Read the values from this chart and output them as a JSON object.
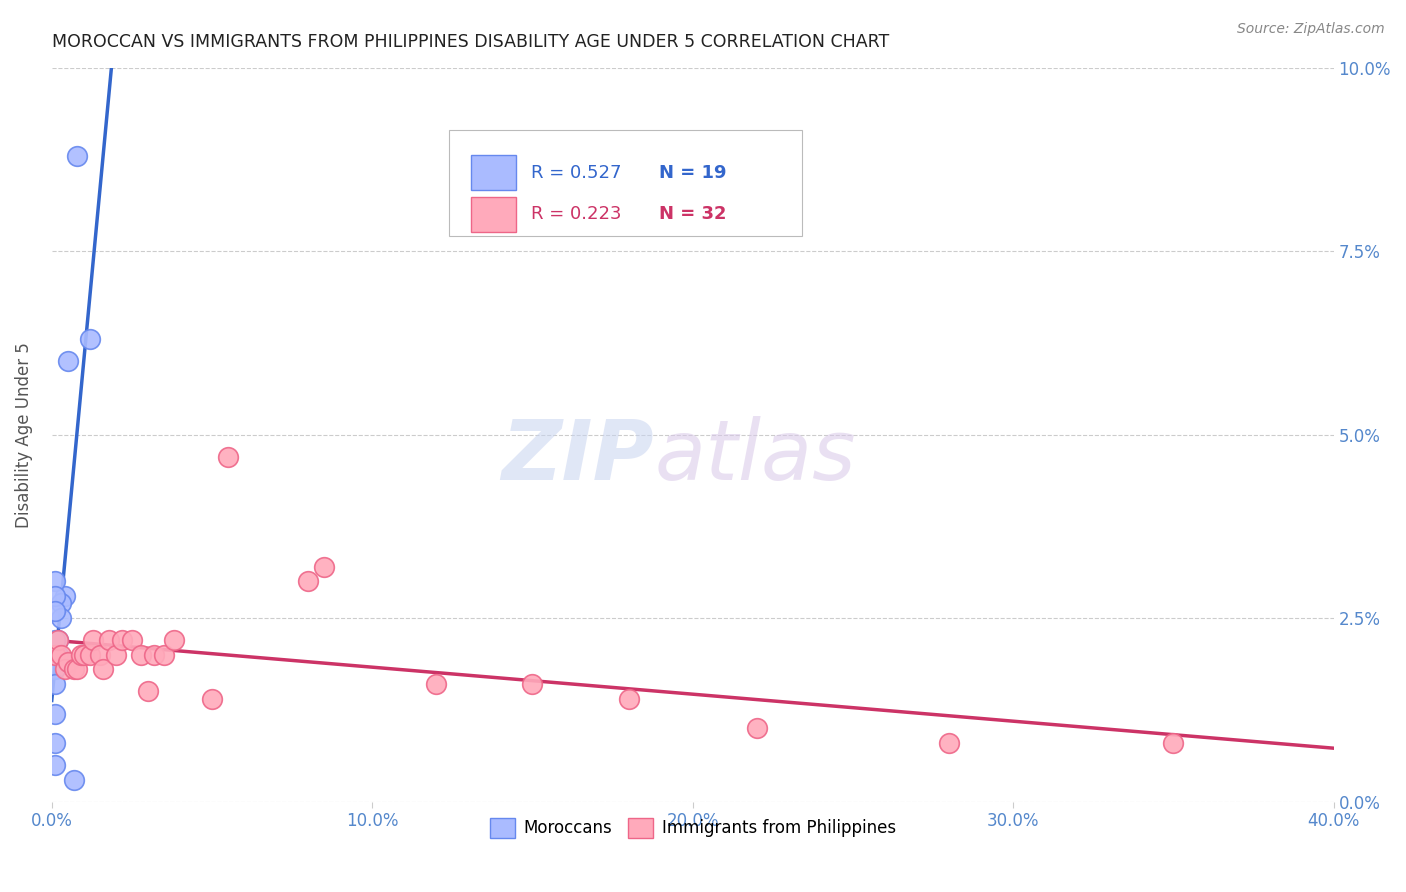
{
  "title": "MOROCCAN VS IMMIGRANTS FROM PHILIPPINES DISABILITY AGE UNDER 5 CORRELATION CHART",
  "source": "Source: ZipAtlas.com",
  "ylabel": "Disability Age Under 5",
  "xlim": [
    0.0,
    0.4
  ],
  "ylim": [
    0.0,
    0.1
  ],
  "xticks": [
    0.0,
    0.1,
    0.2,
    0.3,
    0.4
  ],
  "xticklabels": [
    "0.0%",
    "10.0%",
    "20.0%",
    "30.0%",
    "40.0%"
  ],
  "yticks": [
    0.0,
    0.025,
    0.05,
    0.075,
    0.1
  ],
  "yticklabels": [
    "0.0%",
    "2.5%",
    "5.0%",
    "7.5%",
    "10.0%"
  ],
  "moroccan_x": [
    0.008,
    0.005,
    0.004,
    0.003,
    0.003,
    0.002,
    0.002,
    0.001,
    0.001,
    0.001,
    0.001,
    0.001,
    0.001,
    0.001,
    0.001,
    0.001,
    0.001,
    0.012,
    0.007
  ],
  "moroccan_y": [
    0.088,
    0.06,
    0.028,
    0.027,
    0.025,
    0.022,
    0.02,
    0.03,
    0.028,
    0.026,
    0.022,
    0.02,
    0.018,
    0.016,
    0.012,
    0.008,
    0.005,
    0.063,
    0.003
  ],
  "philippines_x": [
    0.001,
    0.002,
    0.003,
    0.004,
    0.005,
    0.007,
    0.008,
    0.009,
    0.01,
    0.012,
    0.013,
    0.015,
    0.016,
    0.018,
    0.02,
    0.022,
    0.025,
    0.028,
    0.03,
    0.032,
    0.035,
    0.038,
    0.05,
    0.055,
    0.08,
    0.085,
    0.12,
    0.15,
    0.18,
    0.22,
    0.28,
    0.35
  ],
  "philippines_y": [
    0.02,
    0.022,
    0.02,
    0.018,
    0.019,
    0.018,
    0.018,
    0.02,
    0.02,
    0.02,
    0.022,
    0.02,
    0.018,
    0.022,
    0.02,
    0.022,
    0.022,
    0.02,
    0.015,
    0.02,
    0.02,
    0.022,
    0.014,
    0.047,
    0.03,
    0.032,
    0.016,
    0.016,
    0.014,
    0.01,
    0.008,
    0.008
  ],
  "moroccan_color": "#aabbff",
  "moroccan_edge": "#6688ee",
  "philippines_color": "#ffaabb",
  "philippines_edge": "#ee6688",
  "moroccan_line_color": "#3366cc",
  "philippines_line_color": "#cc3366",
  "R_moroccan": 0.527,
  "N_moroccan": 19,
  "R_philippines": 0.223,
  "N_philippines": 32,
  "watermark_zip": "ZIP",
  "watermark_atlas": "atlas",
  "background_color": "#ffffff",
  "grid_color": "#cccccc"
}
